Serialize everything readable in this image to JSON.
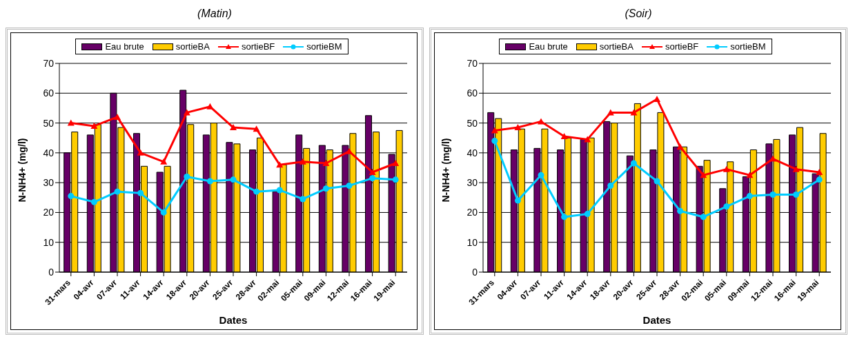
{
  "chart_data": [
    {
      "type": "bar",
      "title": "(Matin)",
      "xlabel": "Dates",
      "ylabel": "N-NH4+ (mg/l)",
      "categories": [
        "31-mars",
        "04-avr",
        "07-avr",
        "11-avr",
        "14-avr",
        "18-avr",
        "20-avr",
        "25-avr",
        "28-avr",
        "02-mai",
        "05-mai",
        "09-mai",
        "12-mai",
        "16-mai",
        "19-mai"
      ],
      "ylim": [
        0,
        70
      ],
      "yticks": [
        0,
        10,
        20,
        30,
        40,
        50,
        60,
        70
      ],
      "grid": "y",
      "legend": "top",
      "series": [
        {
          "name": "Eau brute",
          "color": "#660066",
          "values": [
            40,
            46,
            60,
            46.5,
            33.5,
            61,
            46,
            43.5,
            41,
            27,
            46,
            42.5,
            42.5,
            52.5,
            39.5
          ]
        },
        {
          "name": "sortieBA",
          "color": "#ffcc00",
          "values": [
            47,
            49.5,
            48.5,
            35.5,
            35.5,
            49.5,
            50,
            43,
            45,
            36,
            41.5,
            41,
            46.5,
            47,
            47.5
          ]
        },
        {
          "name": "sortieBF",
          "type": "line",
          "color": "#ff0000",
          "marker": "triangle",
          "values": [
            50,
            49,
            52,
            40,
            37,
            53.5,
            55.5,
            48.5,
            48,
            36,
            37,
            36.5,
            40.5,
            33.5,
            36.5
          ]
        },
        {
          "name": "sortieBM",
          "type": "line",
          "color": "#00ccff",
          "marker": "circle",
          "values": [
            25.5,
            23.5,
            27,
            26.5,
            20,
            32,
            30.5,
            31,
            27,
            27.5,
            24.5,
            28,
            29,
            31.5,
            31
          ]
        }
      ]
    },
    {
      "type": "bar",
      "title": "(Soir)",
      "xlabel": "Dates",
      "ylabel": "N-NH4+ (mg/l)",
      "categories": [
        "31-mars",
        "04-avr",
        "07-avr",
        "11-avr",
        "14-avr",
        "18-avr",
        "20-avr",
        "25-avr",
        "28-avr",
        "02-mai",
        "05-mai",
        "09-mai",
        "12-mai",
        "16-mai",
        "19-mai"
      ],
      "ylim": [
        0,
        70
      ],
      "yticks": [
        0,
        10,
        20,
        30,
        40,
        50,
        60,
        70
      ],
      "grid": "y",
      "legend": "top",
      "series": [
        {
          "name": "Eau brute",
          "color": "#660066",
          "values": [
            53.5,
            41,
            41.5,
            41,
            44.5,
            50.5,
            39,
            41,
            42,
            35.5,
            28,
            32,
            43,
            46,
            33
          ]
        },
        {
          "name": "sortieBA",
          "color": "#ffcc00",
          "values": [
            51.5,
            48,
            48,
            45,
            45,
            50,
            56.5,
            53.5,
            42,
            37.5,
            37,
            41,
            44.5,
            48.5,
            46.5
          ]
        },
        {
          "name": "sortieBF",
          "type": "line",
          "color": "#ff0000",
          "marker": "triangle",
          "values": [
            47.5,
            48.5,
            50.5,
            45.5,
            44.5,
            53.5,
            53.5,
            58,
            42,
            32.5,
            34.5,
            32.5,
            38,
            34.5,
            33.5
          ]
        },
        {
          "name": "sortieBM",
          "type": "line",
          "color": "#00ccff",
          "marker": "circle",
          "values": [
            44,
            24,
            32.5,
            18.5,
            19.5,
            29,
            36.5,
            30.5,
            20.5,
            18.5,
            22,
            25.5,
            26,
            26,
            31
          ]
        }
      ]
    }
  ]
}
